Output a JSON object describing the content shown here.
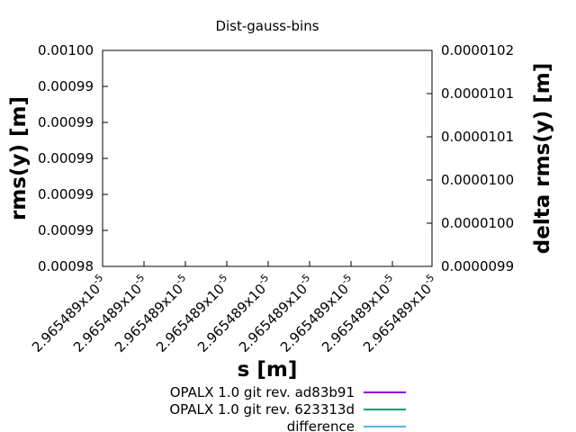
{
  "chart_data": {
    "type": "line",
    "title": "Dist-gauss-bins",
    "xlabel": "s [m]",
    "ylabel": "rms(y) [m]",
    "y2label": "delta rms(y) [m]",
    "x_ticks": {
      "mantissa": "2.965489x10",
      "exponent": "-5",
      "count": 9
    },
    "y_ticks": [
      "0.00100",
      "0.00099",
      "0.00099",
      "0.00099",
      "0.00099",
      "0.00099",
      "0.00098"
    ],
    "y2_ticks": [
      "0.0000102",
      "0.0000101",
      "0.0000101",
      "0.0000100",
      "0.0000100",
      "0.0000099"
    ],
    "ylim": [
      0.00098,
      0.001
    ],
    "y2lim": [
      9.9e-06,
      1.02e-05
    ],
    "grid": false,
    "legend_placement": "bottom-center",
    "series": [
      {
        "name": "OPALX 1.0 git rev. ad83b91",
        "color": "#9400d3",
        "values": []
      },
      {
        "name": "OPALX 1.0 git rev. 623313d",
        "color": "#009e73",
        "values": []
      },
      {
        "name": "difference",
        "color": "#56b4e9",
        "values": []
      }
    ]
  }
}
